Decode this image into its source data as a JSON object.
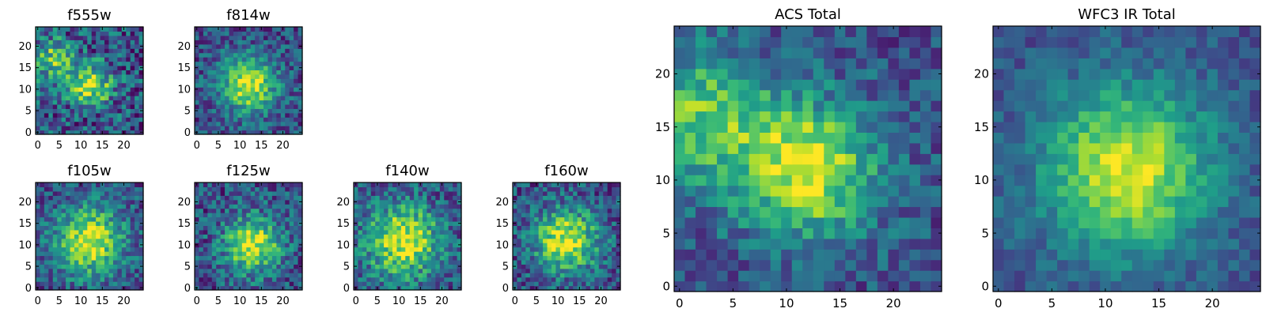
{
  "chart_data": [
    {
      "type": "heatmap",
      "title": "f555w",
      "xlabel": "",
      "ylabel": "",
      "x_ticks": [
        "0",
        "5",
        "10",
        "15",
        "20"
      ],
      "y_ticks": [
        "0",
        "5",
        "10",
        "15",
        "20"
      ],
      "grid_size": [
        25,
        25
      ],
      "xlim": [
        -0.5,
        24.5
      ],
      "ylim": [
        -0.5,
        24.5
      ],
      "colormap": "viridis",
      "peaks": [
        {
          "x": 12,
          "y": 11
        },
        {
          "x": 3,
          "y": 17
        }
      ]
    },
    {
      "type": "heatmap",
      "title": "f814w",
      "xlabel": "",
      "ylabel": "",
      "x_ticks": [
        "0",
        "5",
        "10",
        "15",
        "20"
      ],
      "y_ticks": [
        "0",
        "5",
        "10",
        "15",
        "20"
      ],
      "grid_size": [
        25,
        25
      ],
      "xlim": [
        -0.5,
        24.5
      ],
      "ylim": [
        -0.5,
        24.5
      ],
      "colormap": "viridis",
      "peaks": [
        {
          "x": 12,
          "y": 11
        }
      ]
    },
    {
      "type": "heatmap",
      "title": "f105w",
      "xlabel": "",
      "ylabel": "",
      "x_ticks": [
        "0",
        "5",
        "10",
        "15",
        "20"
      ],
      "y_ticks": [
        "0",
        "5",
        "10",
        "15",
        "20"
      ],
      "grid_size": [
        25,
        25
      ],
      "xlim": [
        -0.5,
        24.5
      ],
      "ylim": [
        -0.5,
        24.5
      ],
      "colormap": "viridis",
      "peaks": [
        {
          "x": 12,
          "y": 11
        }
      ]
    },
    {
      "type": "heatmap",
      "title": "f125w",
      "xlabel": "",
      "ylabel": "",
      "x_ticks": [
        "0",
        "5",
        "10",
        "15",
        "20"
      ],
      "y_ticks": [
        "0",
        "5",
        "10",
        "15",
        "20"
      ],
      "grid_size": [
        25,
        25
      ],
      "xlim": [
        -0.5,
        24.5
      ],
      "ylim": [
        -0.5,
        24.5
      ],
      "colormap": "viridis",
      "peaks": [
        {
          "x": 13,
          "y": 10
        }
      ]
    },
    {
      "type": "heatmap",
      "title": "f140w",
      "xlabel": "",
      "ylabel": "",
      "x_ticks": [
        "0",
        "5",
        "10",
        "15",
        "20"
      ],
      "y_ticks": [
        "0",
        "5",
        "10",
        "15",
        "20"
      ],
      "grid_size": [
        25,
        25
      ],
      "xlim": [
        -0.5,
        24.5
      ],
      "ylim": [
        -0.5,
        24.5
      ],
      "colormap": "viridis",
      "peaks": [
        {
          "x": 11,
          "y": 11
        }
      ]
    },
    {
      "type": "heatmap",
      "title": "f160w",
      "xlabel": "",
      "ylabel": "",
      "x_ticks": [
        "0",
        "5",
        "10",
        "15",
        "20"
      ],
      "y_ticks": [
        "0",
        "5",
        "10",
        "15",
        "20"
      ],
      "grid_size": [
        25,
        25
      ],
      "xlim": [
        -0.5,
        24.5
      ],
      "ylim": [
        -0.5,
        24.5
      ],
      "colormap": "viridis",
      "peaks": [
        {
          "x": 12,
          "y": 11
        }
      ]
    },
    {
      "type": "heatmap",
      "title": "ACS Total",
      "xlabel": "",
      "ylabel": "",
      "x_ticks": [
        "0",
        "5",
        "10",
        "15",
        "20"
      ],
      "y_ticks": [
        "0",
        "5",
        "10",
        "15",
        "20"
      ],
      "grid_size": [
        25,
        25
      ],
      "xlim": [
        -0.5,
        24.5
      ],
      "ylim": [
        -0.5,
        24.5
      ],
      "colormap": "viridis",
      "peaks": [
        {
          "x": 12,
          "y": 11
        },
        {
          "x": 2,
          "y": 16
        }
      ]
    },
    {
      "type": "heatmap",
      "title": "WFC3 IR Total",
      "xlabel": "",
      "ylabel": "",
      "x_ticks": [
        "0",
        "5",
        "10",
        "15",
        "20"
      ],
      "y_ticks": [
        "0",
        "5",
        "10",
        "15",
        "20"
      ],
      "grid_size": [
        25,
        25
      ],
      "xlim": [
        -0.5,
        24.5
      ],
      "ylim": [
        -0.5,
        24.5
      ],
      "colormap": "viridis",
      "peaks": [
        {
          "x": 12,
          "y": 11
        }
      ]
    }
  ]
}
